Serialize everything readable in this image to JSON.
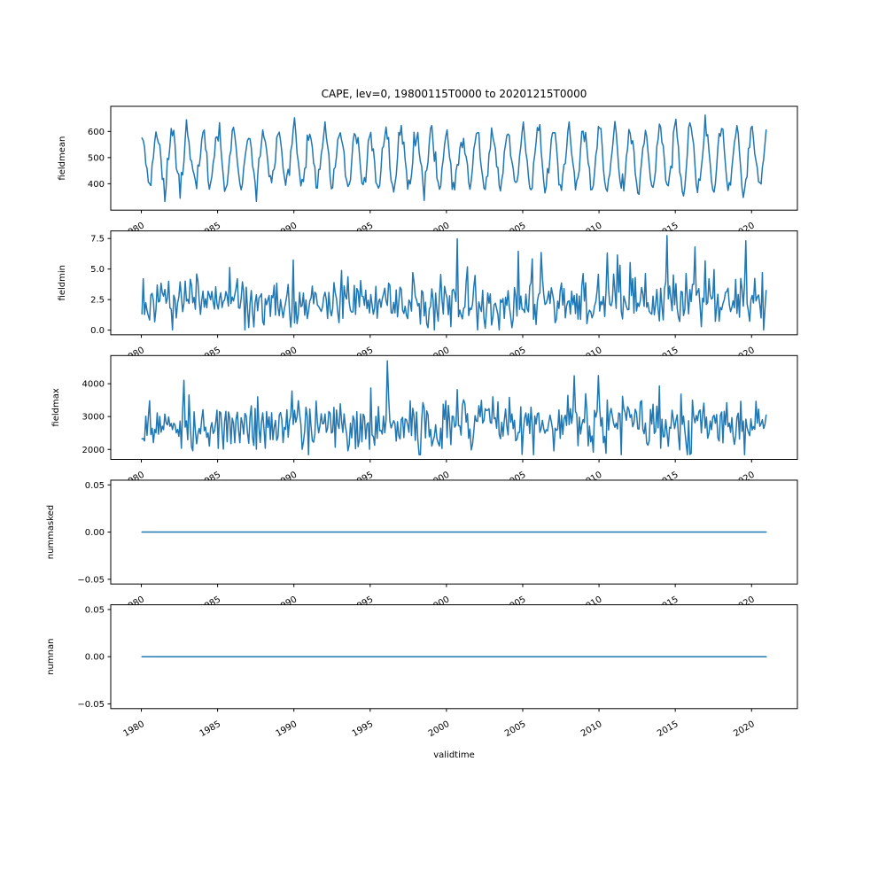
{
  "meta": {
    "title": "CAPE, lev=0, 19800115T0000 to 20201215T0000",
    "xlabel": "validtime"
  },
  "chart_data": {
    "type": "line",
    "layout_desc": "5 vertically stacked subplots sharing one x (time) axis, matplotlib style, no grid, no legend",
    "title": "CAPE, lev=0, 19800115T0000 to 20201215T0000",
    "xlabel": "validtime",
    "x": {
      "start_label": "19800115T0000",
      "end_label": "20201215T0000",
      "xlim": [
        1977.995,
        2023.005
      ],
      "ticks": [
        1980,
        1985,
        1990,
        1995,
        2000,
        2005,
        2010,
        2015,
        2020
      ],
      "tick_rotation_deg": 30,
      "n_points": 492,
      "t_start": 1980.0417,
      "dt": 0.0833333,
      "cadence": "monthly (15th of each month)"
    },
    "line_color": "#1f77b4",
    "line_width": 1.5,
    "subplots": [
      {
        "ylabel": "fieldmean",
        "ylim": [
          299,
          696
        ],
        "yticks": [
          400,
          500,
          600
        ],
        "ytick_labels": [
          "400",
          "500",
          "600"
        ],
        "summary": {
          "pattern": "annual seasonal cycle, peaks ~600-690 near year start, troughs ~340-430 mid-year",
          "min": 332,
          "max": 692,
          "mean": 497
        },
        "gen": {
          "kind": "seasonal",
          "base": 494,
          "amp": 98,
          "amp_trend": 18,
          "amp_jitter": 11,
          "phase": 0.12,
          "noise": 21,
          "seed": 7,
          "clamp": [
            332,
            692
          ]
        }
      },
      {
        "ylabel": "fieldmin",
        "ylim": [
          -0.38,
          8.12
        ],
        "yticks": [
          0.0,
          2.5,
          5.0,
          7.5
        ],
        "ytick_labels": [
          "0.0",
          "2.5",
          "5.0",
          "7.5"
        ],
        "summary": {
          "pattern": "irregular noise around 2, occasional spikes to 6-7.7",
          "min": 0.02,
          "max": 7.74,
          "mean": 2.2
        },
        "gen": {
          "kind": "noisy",
          "base": 2.15,
          "sigma": 1.0,
          "spike_p": 0.05,
          "spike_add": [
            1.5,
            4.2
          ],
          "seed": 13,
          "clamp": [
            0.02,
            7.74
          ]
        }
      },
      {
        "ylabel": "fieldmax",
        "ylim": [
          1697,
          4857
        ],
        "yticks": [
          2000,
          3000,
          4000
        ],
        "ytick_labels": [
          "2000",
          "3000",
          "4000"
        ],
        "summary": {
          "pattern": "irregular noise around 2700-2900, spikes to ~4600-4720",
          "min": 1840,
          "max": 4713,
          "mean": 2780
        },
        "gen": {
          "kind": "noisy",
          "base": 2740,
          "sigma": 420,
          "spike_p": 0.035,
          "spike_add": [
            600,
            1700
          ],
          "seed": 21,
          "clamp": [
            1840,
            4713
          ]
        }
      },
      {
        "ylabel": "nummasked",
        "ylim": [
          -0.055,
          0.055
        ],
        "yticks": [
          -0.05,
          0.0,
          0.05
        ],
        "ytick_labels": [
          "−0.05",
          "0.00",
          "0.05"
        ],
        "summary": {
          "pattern": "constant zero for entire record",
          "min": 0,
          "max": 0,
          "mean": 0
        },
        "gen": {
          "kind": "constant",
          "value": 0
        }
      },
      {
        "ylabel": "numnan",
        "ylim": [
          -0.055,
          0.055
        ],
        "yticks": [
          -0.05,
          0.0,
          0.05
        ],
        "ytick_labels": [
          "−0.05",
          "0.00",
          "0.05"
        ],
        "summary": {
          "pattern": "constant zero for entire record",
          "min": 0,
          "max": 0,
          "mean": 0
        },
        "gen": {
          "kind": "constant",
          "value": 0
        }
      }
    ]
  }
}
